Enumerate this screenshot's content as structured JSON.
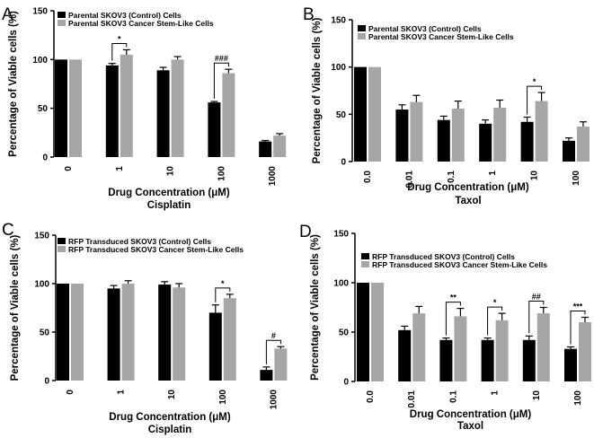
{
  "colors": {
    "control": "#000000",
    "stem": "#a6a6a6"
  },
  "chart_data": [
    {
      "panel": "A",
      "type": "bar",
      "categories": [
        "0",
        "1",
        "10",
        "100",
        "1000"
      ],
      "series": [
        {
          "name": "Parental SKOV3 (Control) Cells",
          "values": [
            100,
            94,
            89,
            56,
            16
          ],
          "errors": [
            0,
            2,
            3,
            1,
            1
          ]
        },
        {
          "name": "Parental SKOV3 Cancer Stem-Like Cells",
          "values": [
            100,
            105,
            100,
            86,
            22
          ],
          "errors": [
            0,
            5,
            3,
            4,
            2
          ]
        }
      ],
      "ylim": [
        0,
        150
      ],
      "yticks": [
        0,
        50,
        100,
        150
      ],
      "ylabel": "Percentage of Viable cells (%)",
      "xlabel": "Drug Concentration (μM)",
      "drug": "Cisplatin",
      "significance": [
        {
          "category": "1",
          "label": "*"
        },
        {
          "category": "100",
          "label": "###"
        }
      ]
    },
    {
      "panel": "B",
      "type": "bar",
      "categories": [
        "0.0",
        "0.01",
        "0.1",
        "1",
        "10",
        "100"
      ],
      "series": [
        {
          "name": "Parental SKOV3 (Control) Cells",
          "values": [
            100,
            55,
            44,
            40,
            42,
            22
          ],
          "errors": [
            0,
            5,
            4,
            4,
            5,
            3
          ]
        },
        {
          "name": "Parental SKOV3 Cancer Stem-Like Cells",
          "values": [
            100,
            63,
            56,
            57,
            64,
            37
          ],
          "errors": [
            0,
            7,
            8,
            8,
            9,
            5
          ]
        }
      ],
      "ylim": [
        0,
        150
      ],
      "yticks": [
        0,
        50,
        100,
        150
      ],
      "ylabel": "Percentage of Viable cells (%)",
      "xlabel": "Drug Concentration (μM)",
      "drug": "Taxol",
      "significance": [
        {
          "category": "10",
          "label": "*"
        }
      ]
    },
    {
      "panel": "C",
      "type": "bar",
      "categories": [
        "0",
        "1",
        "10",
        "100",
        "1000"
      ],
      "series": [
        {
          "name": "RFP Transduced SKOV3 (Control) Cells",
          "values": [
            100,
            95,
            99,
            70,
            11
          ],
          "errors": [
            0,
            3,
            3,
            8,
            3
          ]
        },
        {
          "name": "RFP Transduced SKOV3 Cancer Stem-Like Cells",
          "values": [
            100,
            100,
            96,
            85,
            33
          ],
          "errors": [
            0,
            3,
            4,
            4,
            2
          ]
        }
      ],
      "ylim": [
        0,
        150
      ],
      "yticks": [
        0,
        50,
        100,
        150
      ],
      "ylabel": "Percentage of Viable cells (%)",
      "xlabel": "Drug Concentration (μM)",
      "drug": "Cisplatin",
      "significance": [
        {
          "category": "100",
          "label": "*"
        },
        {
          "category": "1000",
          "label": "#"
        }
      ]
    },
    {
      "panel": "D",
      "type": "bar",
      "categories": [
        "0.0",
        "0.01",
        "0.1",
        "1",
        "10",
        "100"
      ],
      "series": [
        {
          "name": "RFP Transduced SKOV3 (Control) Cells",
          "values": [
            100,
            52,
            42,
            42,
            42,
            33
          ],
          "errors": [
            0,
            4,
            2,
            2,
            4,
            2
          ]
        },
        {
          "name": "RFP Transduced SKOV3 Cancer Stem-Like Cells",
          "values": [
            100,
            69,
            66,
            62,
            69,
            60
          ],
          "errors": [
            0,
            7,
            8,
            7,
            6,
            5
          ]
        }
      ],
      "ylim": [
        0,
        150
      ],
      "yticks": [
        0,
        50,
        100,
        150
      ],
      "ylabel": "Percentage of Viable cells (%)",
      "xlabel": "Drug Concentration (μM)",
      "drug": "Taxol",
      "significance": [
        {
          "category": "0.1",
          "label": "**"
        },
        {
          "category": "1",
          "label": "*"
        },
        {
          "category": "10",
          "label": "##"
        },
        {
          "category": "100",
          "label": "***"
        }
      ]
    }
  ]
}
